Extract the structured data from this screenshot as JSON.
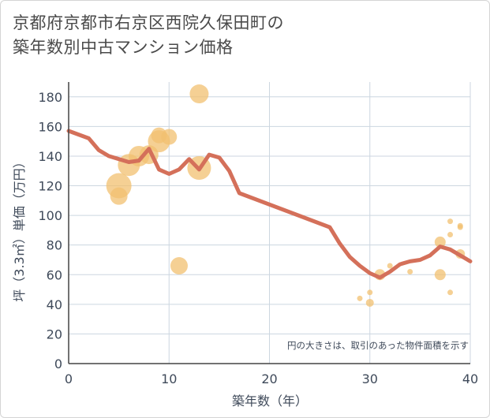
{
  "chart_data": {
    "type": "scatter",
    "title_line1": "京都府京都市右京区西院久保田町の",
    "title_line2": "築年数別中古マンション価格",
    "xlabel": "築年数（年）",
    "ylabel": "坪（3.3㎡）単価（万円）",
    "xlim": [
      0,
      40
    ],
    "ylim": [
      0,
      190
    ],
    "xticks": [
      "0",
      "10",
      "20",
      "30",
      "40"
    ],
    "yticks": [
      "0",
      "20",
      "40",
      "60",
      "80",
      "100",
      "120",
      "140",
      "160",
      "180"
    ],
    "note": "円の大きさは、取引のあった物件面積を示す",
    "colors": {
      "bubble": "#f2c070",
      "trend": "#d4705a",
      "grid": "#ccd6e0"
    },
    "bubbles": [
      {
        "x": 5,
        "y": 120,
        "size": 16
      },
      {
        "x": 5,
        "y": 113,
        "size": 11
      },
      {
        "x": 6,
        "y": 134,
        "size": 14
      },
      {
        "x": 7,
        "y": 140,
        "size": 13
      },
      {
        "x": 8,
        "y": 141,
        "size": 12
      },
      {
        "x": 9,
        "y": 150,
        "size": 14
      },
      {
        "x": 9,
        "y": 154,
        "size": 10
      },
      {
        "x": 10,
        "y": 153,
        "size": 10
      },
      {
        "x": 11,
        "y": 66,
        "size": 11
      },
      {
        "x": 13,
        "y": 182,
        "size": 12
      },
      {
        "x": 13,
        "y": 132,
        "size": 15
      },
      {
        "x": 29,
        "y": 44,
        "size": 3.5
      },
      {
        "x": 30,
        "y": 41,
        "size": 5
      },
      {
        "x": 30,
        "y": 48,
        "size": 3.5
      },
      {
        "x": 31,
        "y": 60,
        "size": 7
      },
      {
        "x": 32,
        "y": 66,
        "size": 3.5
      },
      {
        "x": 34,
        "y": 62,
        "size": 3.5
      },
      {
        "x": 37,
        "y": 82,
        "size": 7
      },
      {
        "x": 37,
        "y": 60,
        "size": 7
      },
      {
        "x": 38,
        "y": 96,
        "size": 3.5
      },
      {
        "x": 38,
        "y": 87,
        "size": 3.5
      },
      {
        "x": 38,
        "y": 48,
        "size": 3.5
      },
      {
        "x": 39,
        "y": 93,
        "size": 3.5
      },
      {
        "x": 39,
        "y": 92,
        "size": 3.5
      },
      {
        "x": 39,
        "y": 74,
        "size": 6
      }
    ],
    "trend": [
      {
        "x": 0,
        "y": 157
      },
      {
        "x": 2,
        "y": 152
      },
      {
        "x": 3,
        "y": 144
      },
      {
        "x": 4,
        "y": 140
      },
      {
        "x": 5,
        "y": 138
      },
      {
        "x": 6,
        "y": 136
      },
      {
        "x": 7,
        "y": 137
      },
      {
        "x": 8,
        "y": 145
      },
      {
        "x": 9,
        "y": 131
      },
      {
        "x": 10,
        "y": 128
      },
      {
        "x": 11,
        "y": 131
      },
      {
        "x": 12,
        "y": 138
      },
      {
        "x": 13,
        "y": 131
      },
      {
        "x": 14,
        "y": 141
      },
      {
        "x": 15,
        "y": 139
      },
      {
        "x": 16,
        "y": 130
      },
      {
        "x": 17,
        "y": 115
      },
      {
        "x": 26,
        "y": 92
      },
      {
        "x": 27,
        "y": 81
      },
      {
        "x": 28,
        "y": 72
      },
      {
        "x": 29,
        "y": 66
      },
      {
        "x": 30,
        "y": 61
      },
      {
        "x": 31,
        "y": 58
      },
      {
        "x": 32,
        "y": 62
      },
      {
        "x": 33,
        "y": 67
      },
      {
        "x": 34,
        "y": 69
      },
      {
        "x": 35,
        "y": 70
      },
      {
        "x": 36,
        "y": 73
      },
      {
        "x": 37,
        "y": 79
      },
      {
        "x": 38,
        "y": 77
      },
      {
        "x": 39,
        "y": 73
      },
      {
        "x": 40,
        "y": 69
      }
    ]
  }
}
